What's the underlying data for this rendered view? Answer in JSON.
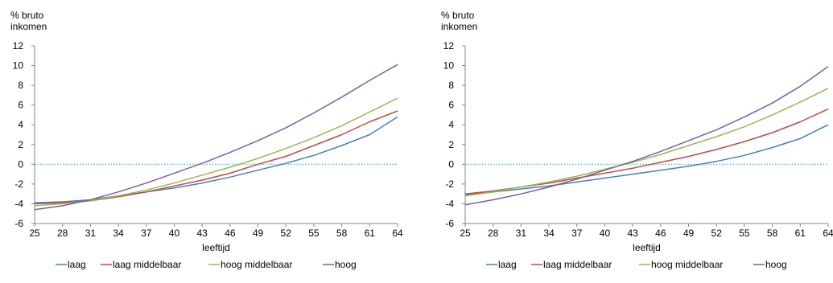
{
  "colors": {
    "laag": "#4a7ebb",
    "laag_middelbaar": "#be4b48",
    "hoog_middelbaar": "#98b954",
    "hoog": "#7d5fa0",
    "zero_line": "#4bacc6",
    "axis": "#868686"
  },
  "chart_data": [
    {
      "type": "line",
      "ylabel_lines": [
        "% bruto",
        "inkomen"
      ],
      "xlabel": "leeftijd",
      "ylim": [
        -6,
        12
      ],
      "yticks": [
        -6,
        -4,
        -2,
        0,
        2,
        4,
        6,
        8,
        10,
        12
      ],
      "xlim": [
        25,
        64
      ],
      "xticks": [
        25,
        28,
        31,
        34,
        37,
        40,
        43,
        46,
        49,
        52,
        55,
        58,
        61,
        64
      ],
      "grid": false,
      "legend_position": "bottom",
      "x": [
        25,
        28,
        31,
        34,
        37,
        40,
        43,
        46,
        49,
        52,
        55,
        58,
        61,
        64
      ],
      "series": [
        {
          "name": "laag",
          "color_key": "laag",
          "values": [
            -3.9,
            -3.8,
            -3.6,
            -3.2,
            -2.8,
            -2.4,
            -1.9,
            -1.3,
            -0.6,
            0.1,
            0.9,
            1.9,
            3.0,
            4.8
          ]
        },
        {
          "name": "laag middelbaar",
          "color_key": "laag_middelbaar",
          "values": [
            -4.0,
            -3.9,
            -3.7,
            -3.3,
            -2.8,
            -2.2,
            -1.6,
            -0.9,
            0.0,
            0.8,
            1.9,
            3.0,
            4.3,
            5.4
          ]
        },
        {
          "name": "hoog middelbaar",
          "color_key": "hoog_middelbaar",
          "values": [
            -4.2,
            -4.0,
            -3.7,
            -3.2,
            -2.6,
            -1.9,
            -1.1,
            -0.3,
            0.6,
            1.6,
            2.7,
            3.9,
            5.3,
            6.7
          ]
        },
        {
          "name": "hoog",
          "color_key": "hoog",
          "values": [
            -4.6,
            -4.2,
            -3.6,
            -2.8,
            -1.9,
            -0.9,
            0.1,
            1.2,
            2.4,
            3.7,
            5.2,
            6.8,
            8.5,
            10.1
          ]
        }
      ]
    },
    {
      "type": "line",
      "ylabel_lines": [
        "% bruto",
        "inkomen"
      ],
      "xlabel": "leeftijd",
      "ylim": [
        -6,
        12
      ],
      "yticks": [
        -6,
        -4,
        -2,
        0,
        2,
        4,
        6,
        8,
        10,
        12
      ],
      "xlim": [
        25,
        64
      ],
      "xticks": [
        25,
        28,
        31,
        34,
        37,
        40,
        43,
        46,
        49,
        52,
        55,
        58,
        61,
        64
      ],
      "grid": false,
      "legend_position": "bottom",
      "x": [
        25,
        28,
        31,
        34,
        37,
        40,
        43,
        46,
        49,
        52,
        55,
        58,
        61,
        64
      ],
      "series": [
        {
          "name": "laag",
          "color_key": "laag",
          "values": [
            -3.1,
            -2.8,
            -2.5,
            -2.2,
            -1.8,
            -1.4,
            -1.0,
            -0.6,
            -0.2,
            0.3,
            0.9,
            1.7,
            2.6,
            4.0
          ]
        },
        {
          "name": "laag middelbaar",
          "color_key": "laag_middelbaar",
          "values": [
            -3.0,
            -2.7,
            -2.3,
            -1.9,
            -1.4,
            -0.9,
            -0.4,
            0.2,
            0.8,
            1.5,
            2.3,
            3.2,
            4.3,
            5.6
          ]
        },
        {
          "name": "hoog middelbaar",
          "color_key": "hoog_middelbaar",
          "values": [
            -3.2,
            -2.8,
            -2.3,
            -1.8,
            -1.2,
            -0.5,
            0.2,
            1.0,
            1.9,
            2.8,
            3.8,
            5.0,
            6.3,
            7.7
          ]
        },
        {
          "name": "hoog",
          "color_key": "hoog",
          "values": [
            -4.1,
            -3.6,
            -3.0,
            -2.3,
            -1.5,
            -0.6,
            0.3,
            1.3,
            2.4,
            3.5,
            4.8,
            6.2,
            7.9,
            9.9
          ]
        }
      ]
    }
  ]
}
